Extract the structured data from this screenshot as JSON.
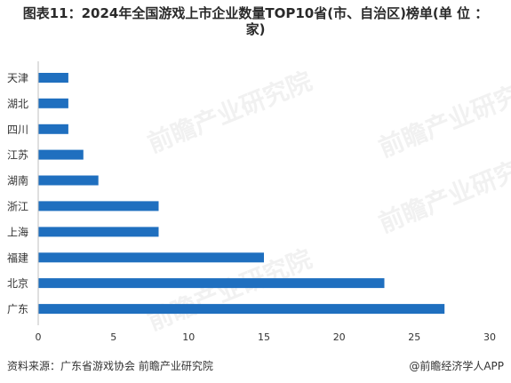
{
  "title_line1": "图表11：2024年全国游戏上市企业数量TOP10省(市、自治区)榜单(单 位 ：",
  "title_line2": "家)",
  "footer": {
    "source": "资料来源：广东省游戏协会 前瞻产业研究院",
    "brand": "@前瞻经济学人APP"
  },
  "watermark": "前瞻产业研究院",
  "colors": {
    "bar": "#1f6fbf",
    "axis": "#bfbfbf",
    "text": "#333333"
  },
  "chart_data": {
    "type": "bar",
    "orientation": "horizontal",
    "title": "图表11：2024年全国游戏上市企业数量TOP10省(市、自治区)榜单(单 位 ：家)",
    "categories": [
      "天津",
      "湖北",
      "四川",
      "江苏",
      "湖南",
      "浙江",
      "上海",
      "福建",
      "北京",
      "广东"
    ],
    "values": [
      2,
      2,
      2,
      3,
      4,
      8,
      8,
      15,
      23,
      27
    ],
    "xlim": [
      0,
      30
    ],
    "xticks": [
      0,
      5,
      10,
      15,
      20,
      25,
      30
    ],
    "grid": false,
    "legend": "none"
  }
}
